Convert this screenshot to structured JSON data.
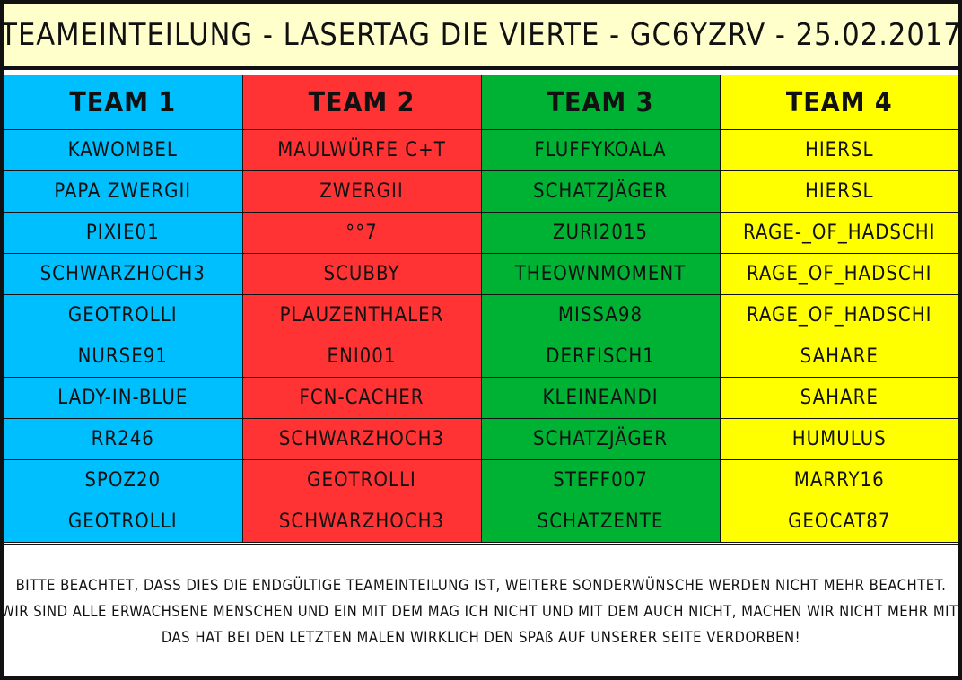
{
  "title": "TEAMEINTEILUNG - LASERTAG DIE VIERTE - GC6YZRV - 25.02.2017",
  "colors": {
    "team1": "#00bfff",
    "team2": "#ff3333",
    "team3": "#00b234",
    "team4": "#ffff00",
    "title_background": "#ffffcc"
  },
  "headers": [
    "TEAM 1",
    "TEAM 2",
    "TEAM 3",
    "TEAM 4"
  ],
  "rows": [
    [
      "KAWOMBEL",
      "MAULWÜRFE C+T",
      "FLUFFYKOALA",
      "HIERSL"
    ],
    [
      "PAPA ZWERGII",
      "ZWERGII",
      "SCHATZJÄGER",
      "HIERSL"
    ],
    [
      "PIXIE01",
      "°°7",
      "ZURI2015",
      "RAGE-_OF_HADSCHI"
    ],
    [
      "SCHWARZHOCH3",
      "SCUBBY",
      "THEOWNMOMENT",
      "RAGE_OF_HADSCHI"
    ],
    [
      "GEOTROLLI",
      "PLAUZENTHALER",
      "MISSA98",
      "RAGE_OF_HADSCHI"
    ],
    [
      "NURSE91",
      "ENI001",
      "DERFISCH1",
      "SAHARE"
    ],
    [
      "LADY-IN-BLUE",
      "FCN-CACHER",
      "KLEINEANDI",
      "SAHARE"
    ],
    [
      "RR246",
      "SCHWARZHOCH3",
      "SCHATZJÄGER",
      "HUMULUS"
    ],
    [
      "SPOZ20",
      "GEOTROLLI",
      "STEFF007",
      "MARRY16"
    ],
    [
      "GEOTROLLI",
      "SCHWARZHOCH3",
      "SCHATZENTE",
      "GEOCAT87"
    ]
  ],
  "notice": [
    "BITTE BEACHTET, DASS DIES DIE ENDGÜLTIGE TEAMEINTEILUNG IST, WEITERE SONDERWÜNSCHE WERDEN NICHT MEHR BEACHTET.",
    "WIR SIND ALLE ERWACHSENE MENSCHEN UND EIN MIT DEM MAG ICH NICHT UND MIT DEM AUCH NICHT, MACHEN WIR NICHT MEHR MIT.",
    "DAS HAT BEI DEN LETZTEN MALEN WIRKLICH DEN SPAß AUF UNSERER SEITE VERDORBEN!"
  ]
}
